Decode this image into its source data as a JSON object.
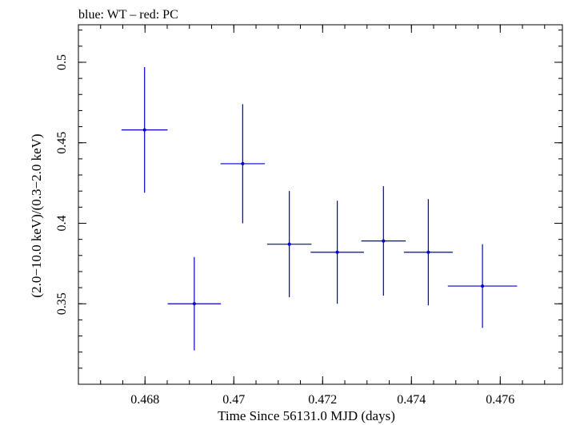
{
  "chart_data": {
    "type": "scatter",
    "title": "blue: WT – red: PC",
    "xlabel": "Time Since 56131.0 MJD (days)",
    "ylabel": "(2.0−10.0 keV)/(0.3−2.0 keV)",
    "xlim": [
      0.4665,
      0.4774
    ],
    "ylim": [
      0.3,
      0.5233
    ],
    "x_ticks": [
      0.468,
      0.47,
      0.472,
      0.474,
      0.476
    ],
    "x_tick_labels": [
      "0.468",
      "0.47",
      "0.472",
      "0.474",
      "0.476"
    ],
    "y_ticks": [
      0.35,
      0.4,
      0.45,
      0.5
    ],
    "y_tick_labels": [
      "0.35",
      "0.4",
      "0.45",
      "0.5"
    ],
    "grid": false,
    "series": [
      {
        "color": "#0000cc",
        "points": [
          {
            "x": 0.46799,
            "y": 0.458,
            "xerr": 0.00052,
            "yerr_low": 0.039,
            "yerr_high": 0.039
          },
          {
            "x": 0.46911,
            "y": 0.35,
            "xerr": 0.0006,
            "yerr_low": 0.029,
            "yerr_high": 0.029
          },
          {
            "x": 0.4702,
            "y": 0.437,
            "xerr": 0.0005,
            "yerr_low": 0.037,
            "yerr_high": 0.037
          },
          {
            "x": 0.47125,
            "y": 0.387,
            "xerr": 0.0005,
            "yerr_low": 0.033,
            "yerr_high": 0.033
          },
          {
            "x": 0.47233,
            "y": 0.382,
            "xerr": 0.0006,
            "yerr_low": 0.032,
            "yerr_high": 0.032
          },
          {
            "x": 0.47337,
            "y": 0.389,
            "xerr": 0.0005,
            "yerr_low": 0.034,
            "yerr_high": 0.034
          },
          {
            "x": 0.47438,
            "y": 0.382,
            "xerr": 0.00055,
            "yerr_low": 0.033,
            "yerr_high": 0.033
          },
          {
            "x": 0.4756,
            "y": 0.361,
            "xerr": 0.00078,
            "yerr_low": 0.026,
            "yerr_high": 0.026
          }
        ]
      }
    ]
  }
}
